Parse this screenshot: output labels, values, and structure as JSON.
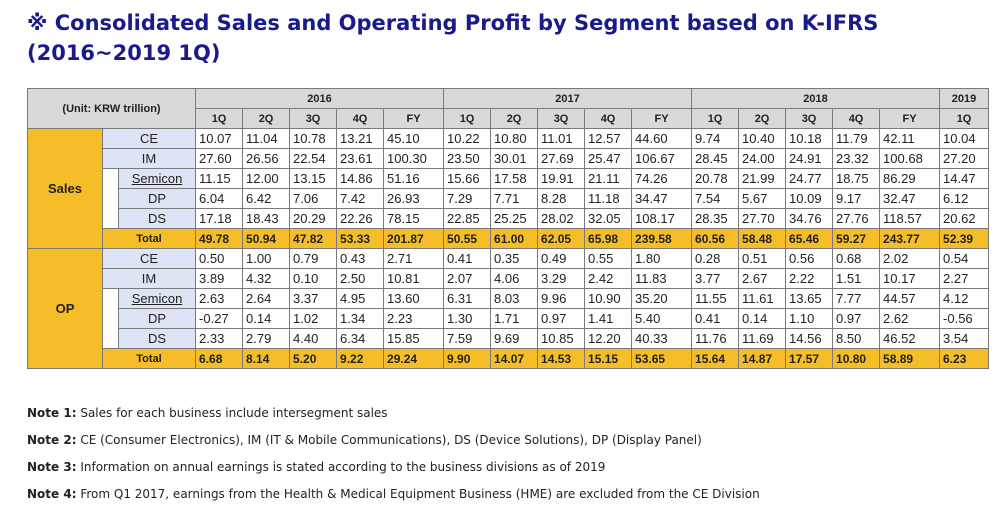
{
  "title": "※ Consolidated Sales and Operating Profit by Segment based on K-IFRS (2016~2019 1Q)",
  "table": {
    "unit_label": "(Unit: KRW trillion)",
    "years": [
      "2016",
      "2017",
      "2018",
      "2019"
    ],
    "periods": [
      "1Q",
      "2Q",
      "3Q",
      "4Q",
      "FY",
      "1Q",
      "2Q",
      "3Q",
      "4Q",
      "FY",
      "1Q",
      "2Q",
      "3Q",
      "4Q",
      "FY",
      "1Q"
    ],
    "sales": {
      "label": "Sales",
      "rows": [
        {
          "name": "CE",
          "values": [
            "10.07",
            "11.04",
            "10.78",
            "13.21",
            "45.10",
            "10.22",
            "10.80",
            "11.01",
            "12.57",
            "44.60",
            "9.74",
            "10.40",
            "10.18",
            "11.79",
            "42.11",
            "10.04"
          ]
        },
        {
          "name": "IM",
          "values": [
            "27.60",
            "26.56",
            "22.54",
            "23.61",
            "100.30",
            "23.50",
            "30.01",
            "27.69",
            "25.47",
            "106.67",
            "28.45",
            "24.00",
            "24.91",
            "23.32",
            "100.68",
            "27.20"
          ]
        },
        {
          "name": "Semicon",
          "values": [
            "11.15",
            "12.00",
            "13.15",
            "14.86",
            "51.16",
            "15.66",
            "17.58",
            "19.91",
            "21.11",
            "74.26",
            "20.78",
            "21.99",
            "24.77",
            "18.75",
            "86.29",
            "14.47"
          ]
        },
        {
          "name": "DP",
          "values": [
            "6.04",
            "6.42",
            "7.06",
            "7.42",
            "26.93",
            "7.29",
            "7.71",
            "8.28",
            "11.18",
            "34.47",
            "7.54",
            "5.67",
            "10.09",
            "9.17",
            "32.47",
            "6.12"
          ]
        },
        {
          "name": "DS",
          "values": [
            "17.18",
            "18.43",
            "20.29",
            "22.26",
            "78.15",
            "22.85",
            "25.25",
            "28.02",
            "32.05",
            "108.17",
            "28.35",
            "27.70",
            "34.76",
            "27.76",
            "118.57",
            "20.62"
          ]
        }
      ],
      "total": {
        "name": "Total",
        "values": [
          "49.78",
          "50.94",
          "47.82",
          "53.33",
          "201.87",
          "50.55",
          "61.00",
          "62.05",
          "65.98",
          "239.58",
          "60.56",
          "58.48",
          "65.46",
          "59.27",
          "243.77",
          "52.39"
        ]
      }
    },
    "op": {
      "label": "OP",
      "rows": [
        {
          "name": "CE",
          "values": [
            "0.50",
            "1.00",
            "0.79",
            "0.43",
            "2.71",
            "0.41",
            "0.35",
            "0.49",
            "0.55",
            "1.80",
            "0.28",
            "0.51",
            "0.56",
            "0.68",
            "2.02",
            "0.54"
          ]
        },
        {
          "name": "IM",
          "values": [
            "3.89",
            "4.32",
            "0.10",
            "2.50",
            "10.81",
            "2.07",
            "4.06",
            "3.29",
            "2.42",
            "11.83",
            "3.77",
            "2.67",
            "2.22",
            "1.51",
            "10.17",
            "2.27"
          ]
        },
        {
          "name": "Semicon",
          "values": [
            "2.63",
            "2.64",
            "3.37",
            "4.95",
            "13.60",
            "6.31",
            "8.03",
            "9.96",
            "10.90",
            "35.20",
            "11.55",
            "11.61",
            "13.65",
            "7.77",
            "44.57",
            "4.12"
          ]
        },
        {
          "name": "DP",
          "values": [
            "-0.27",
            "0.14",
            "1.02",
            "1.34",
            "2.23",
            "1.30",
            "1.71",
            "0.97",
            "1.41",
            "5.40",
            "0.41",
            "0.14",
            "1.10",
            "0.97",
            "2.62",
            "-0.56"
          ]
        },
        {
          "name": "DS",
          "values": [
            "2.33",
            "2.79",
            "4.40",
            "6.34",
            "15.85",
            "7.59",
            "9.69",
            "10.85",
            "12.20",
            "40.33",
            "11.76",
            "11.69",
            "14.56",
            "8.50",
            "46.52",
            "3.54"
          ]
        }
      ],
      "total": {
        "name": "Total",
        "values": [
          "6.68",
          "8.14",
          "5.20",
          "9.22",
          "29.24",
          "9.90",
          "14.07",
          "14.53",
          "15.15",
          "53.65",
          "15.64",
          "14.87",
          "17.57",
          "10.80",
          "58.89",
          "6.23"
        ]
      }
    }
  },
  "notes": [
    {
      "label": "Note 1:",
      "text": "Sales for each business include intersegment sales"
    },
    {
      "label": "Note 2:",
      "text": "CE (Consumer Electronics), IM (IT & Mobile Communications), DS (Device Solutions), DP (Display Panel)"
    },
    {
      "label": "Note 3:",
      "text": "Information on annual earnings is stated according to the business divisions as of 2019"
    },
    {
      "label": "Note 4:",
      "text": "From Q1 2017, earnings from the Health & Medical Equipment Business (HME) are excluded from the CE Division"
    }
  ]
}
